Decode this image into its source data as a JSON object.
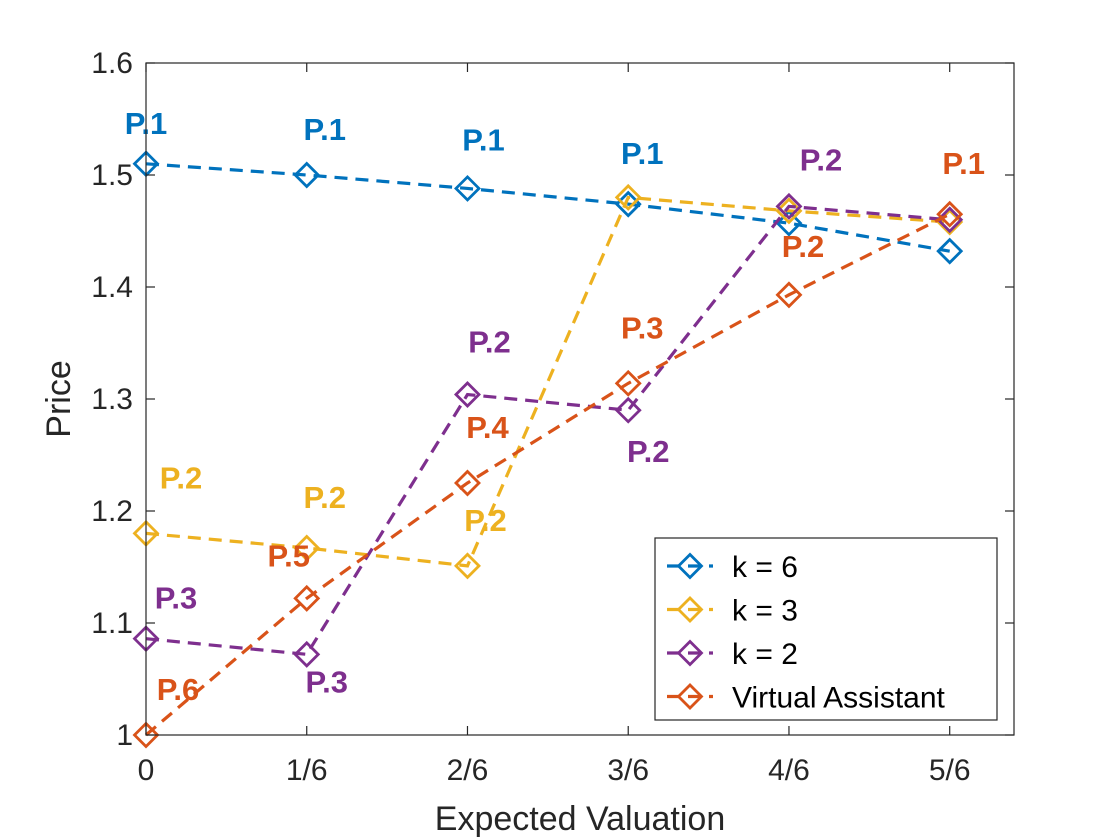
{
  "chart_data": {
    "type": "line",
    "title": "",
    "xlabel": "Expected Valuation",
    "ylabel": "Price",
    "x": [
      0,
      1,
      2,
      3,
      4,
      5
    ],
    "x_tick_labels": [
      "0",
      "1/6",
      "2/6",
      "3/6",
      "4/6",
      "5/6"
    ],
    "xlim": [
      0,
      5.4
    ],
    "ylim": [
      1.0,
      1.6
    ],
    "y_ticks": [
      1.0,
      1.1,
      1.2,
      1.3,
      1.4,
      1.5,
      1.6
    ],
    "y_tick_labels": [
      "1",
      "1.1",
      "1.2",
      "1.3",
      "1.4",
      "1.5",
      "1.6"
    ],
    "grid": false,
    "legend_position": "bottom-right",
    "series": [
      {
        "name": "k = 6",
        "color": "#0072BD",
        "values": [
          1.51,
          1.5,
          1.488,
          1.474,
          1.457,
          1.432
        ],
        "point_labels": [
          "P.1",
          "P.1",
          "P.1",
          "P.1",
          "",
          ""
        ]
      },
      {
        "name": "k = 3",
        "color": "#EDB120",
        "values": [
          1.18,
          1.167,
          1.151,
          1.48,
          1.468,
          1.458
        ],
        "point_labels": [
          "P.2",
          "P.2",
          "P.2",
          "",
          "",
          ""
        ]
      },
      {
        "name": "k = 2",
        "color": "#7E2F8E",
        "values": [
          1.086,
          1.072,
          1.304,
          1.29,
          1.472,
          1.46
        ],
        "point_labels": [
          "P.3",
          "P.3",
          "P.2",
          "P.2",
          "P.2",
          ""
        ]
      },
      {
        "name": "Virtual Assistant",
        "color": "#D95319",
        "values": [
          1.0,
          1.122,
          1.225,
          1.314,
          1.393,
          1.465
        ],
        "point_labels": [
          "P.6",
          "P.5",
          "P.4",
          "P.3",
          "P.2",
          "P.1"
        ]
      }
    ]
  }
}
